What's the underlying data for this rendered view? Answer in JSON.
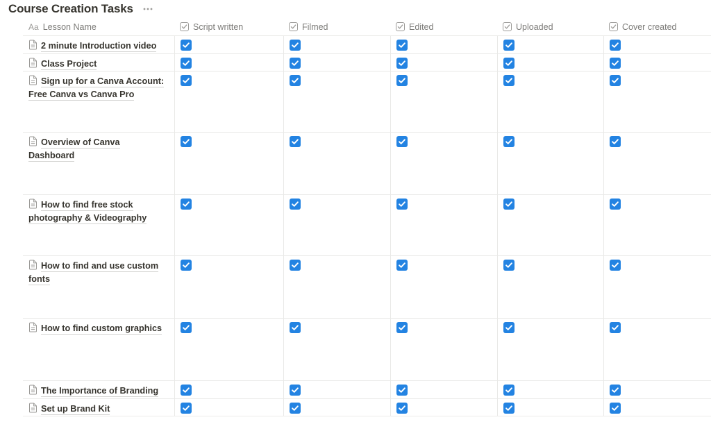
{
  "page": {
    "title": "Course Creation Tasks",
    "menu_icon": "ellipsis-icon"
  },
  "colors": {
    "checkbox_checked": "#2383E2",
    "grid_line": "#E9E9E7",
    "text": "#37352F",
    "secondary_text": "#7C7B78",
    "icon_gray": "#9B9A97"
  },
  "table": {
    "columns": [
      {
        "key": "name",
        "label": "Lesson Name",
        "icon": "text-icon",
        "type": "title"
      },
      {
        "key": "script_written",
        "label": "Script written",
        "icon": "checkbox-icon",
        "type": "checkbox"
      },
      {
        "key": "filmed",
        "label": "Filmed",
        "icon": "checkbox-icon",
        "type": "checkbox"
      },
      {
        "key": "edited",
        "label": "Edited",
        "icon": "checkbox-icon",
        "type": "checkbox"
      },
      {
        "key": "uploaded",
        "label": "Uploaded",
        "icon": "checkbox-icon",
        "type": "checkbox"
      },
      {
        "key": "cover_created",
        "label": "Cover created",
        "icon": "checkbox-icon",
        "type": "checkbox"
      }
    ],
    "rows": [
      {
        "name": "2 minute Introduction video",
        "script_written": true,
        "filmed": true,
        "edited": true,
        "uploaded": true,
        "cover_created": true
      },
      {
        "name": "Class Project",
        "script_written": true,
        "filmed": true,
        "edited": true,
        "uploaded": true,
        "cover_created": true
      },
      {
        "name": "Sign up for a Canva Account: Free Canva vs Canva Pro",
        "script_written": true,
        "filmed": true,
        "edited": true,
        "uploaded": true,
        "cover_created": true
      },
      {
        "name": "Overview of Canva Dashboard",
        "script_written": true,
        "filmed": true,
        "edited": true,
        "uploaded": true,
        "cover_created": true
      },
      {
        "name": "How to find free stock photography & Videography",
        "script_written": true,
        "filmed": true,
        "edited": true,
        "uploaded": true,
        "cover_created": true
      },
      {
        "name": "How to find and use custom fonts",
        "script_written": true,
        "filmed": true,
        "edited": true,
        "uploaded": true,
        "cover_created": true
      },
      {
        "name": "How to find custom graphics",
        "script_written": true,
        "filmed": true,
        "edited": true,
        "uploaded": true,
        "cover_created": true
      },
      {
        "name": "The Importance of Branding",
        "script_written": true,
        "filmed": true,
        "edited": true,
        "uploaded": true,
        "cover_created": true
      },
      {
        "name": "Set up Brand Kit",
        "script_written": true,
        "filmed": true,
        "edited": true,
        "uploaded": true,
        "cover_created": true
      }
    ]
  }
}
